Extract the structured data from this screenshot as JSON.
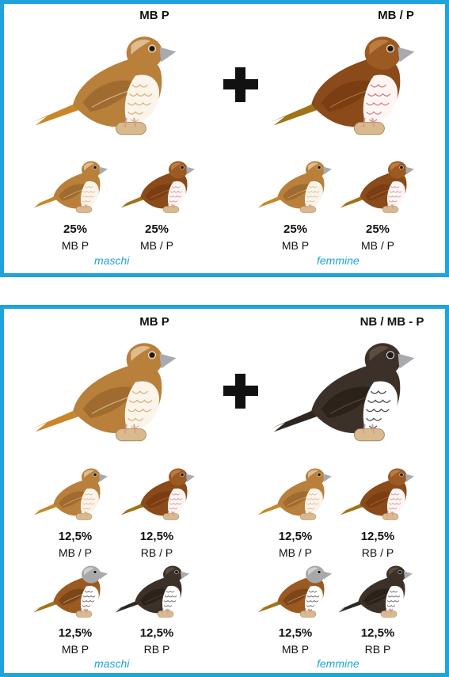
{
  "colors": {
    "frame": "#1ea3dd",
    "sex_label": "#1ea3dd",
    "text": "#111111"
  },
  "panel1": {
    "parent_male": "MB P",
    "parent_female": "MB / P",
    "offspring": [
      {
        "pct": "25%",
        "genotype": "MB P",
        "bird": "light-brown-bird-icon"
      },
      {
        "pct": "25%",
        "genotype": "MB / P",
        "bird": "dark-brown-bird-icon"
      },
      {
        "pct": "25%",
        "genotype": "MB P",
        "bird": "light-brown-bird-icon"
      },
      {
        "pct": "25%",
        "genotype": "MB / P",
        "bird": "dark-brown-bird-icon"
      }
    ],
    "sex_male": "maschi",
    "sex_female": "femmine"
  },
  "panel2": {
    "parent_male": "MB P",
    "parent_female": "NB / MB - P",
    "offspring": [
      {
        "pct": "12,5%",
        "genotype": "MB / P",
        "bird": "light-brown-bird-icon"
      },
      {
        "pct": "12,5%",
        "genotype": "RB / P",
        "bird": "dark-brown-bird-icon"
      },
      {
        "pct": "12,5%",
        "genotype": "MB / P",
        "bird": "light-brown-bird-icon"
      },
      {
        "pct": "12,5%",
        "genotype": "RB / P",
        "bird": "dark-brown-bird-icon"
      },
      {
        "pct": "12,5%",
        "genotype": "MB P",
        "bird": "grey-headed-bird-icon"
      },
      {
        "pct": "12,5%",
        "genotype": "RB P",
        "bird": "black-bird-icon"
      },
      {
        "pct": "12,5%",
        "genotype": "MB P",
        "bird": "grey-headed-bird-icon"
      },
      {
        "pct": "12,5%",
        "genotype": "RB P",
        "bird": "black-bird-icon"
      }
    ],
    "sex_male": "maschi",
    "sex_female": "femmine"
  }
}
